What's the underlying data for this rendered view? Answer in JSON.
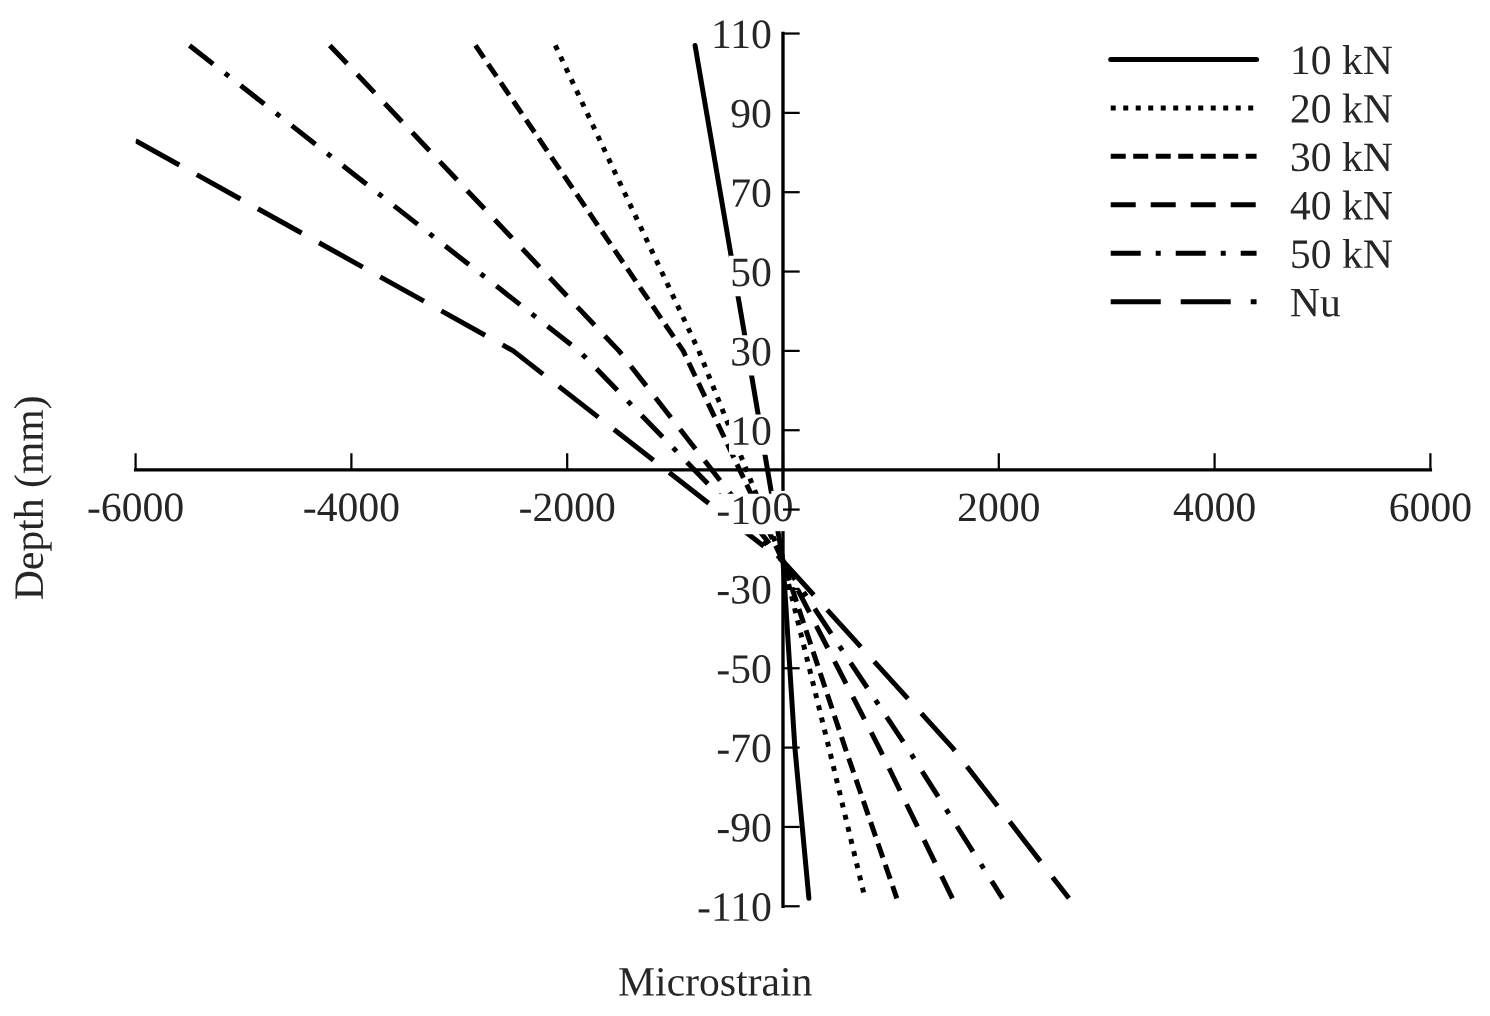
{
  "chart_data": {
    "type": "line",
    "xlabel": "Microstrain",
    "ylabel": "Depth (mm)",
    "xlim": [
      -6000,
      6000
    ],
    "xticks": [
      -6000,
      -4000,
      -2000,
      0,
      2000,
      4000,
      6000
    ],
    "ylim": [
      -110,
      110
    ],
    "yticks": [
      -110,
      -90,
      -70,
      -50,
      -30,
      -10,
      10,
      30,
      50,
      70,
      90,
      110
    ],
    "grid": false,
    "legend": "top right",
    "marker": "none",
    "series": [
      {
        "name": "10 kN",
        "color": "#000000",
        "line_style": "solid",
        "x": [
          -815,
          -330,
          0,
          110,
          240
        ],
        "values": [
          107,
          30,
          -23,
          -70,
          -108
        ]
      },
      {
        "name": "20 kN",
        "color": "#000000",
        "line_style": "dotted",
        "x": [
          -2110,
          -780,
          0,
          425,
          760
        ],
        "values": [
          107,
          30,
          -23,
          -70,
          -108
        ]
      },
      {
        "name": "30 kN",
        "color": "#000000",
        "line_style": "short dashed",
        "x": [
          -2850,
          -925,
          0,
          575,
          1055
        ],
        "values": [
          107,
          30,
          -23,
          -70,
          -108
        ]
      },
      {
        "name": "40 kN",
        "color": "#000000",
        "line_style": "dashed",
        "x": [
          -4200,
          -1520,
          0,
          890,
          1570
        ],
        "values": [
          107,
          30,
          -23,
          -70,
          -108
        ]
      },
      {
        "name": "50 kN",
        "color": "#000000",
        "line_style": "dashdot",
        "x": [
          -5500,
          -1890,
          0,
          1150,
          2035
        ],
        "values": [
          107,
          30,
          -23,
          -70,
          -108
        ]
      },
      {
        "name": "Nu",
        "color": "#000000",
        "line_style": "long dashed",
        "x": [
          -6000,
          -2500,
          0,
          1570,
          2650
        ],
        "values": [
          83,
          30,
          -23,
          -70,
          -108
        ]
      }
    ]
  }
}
